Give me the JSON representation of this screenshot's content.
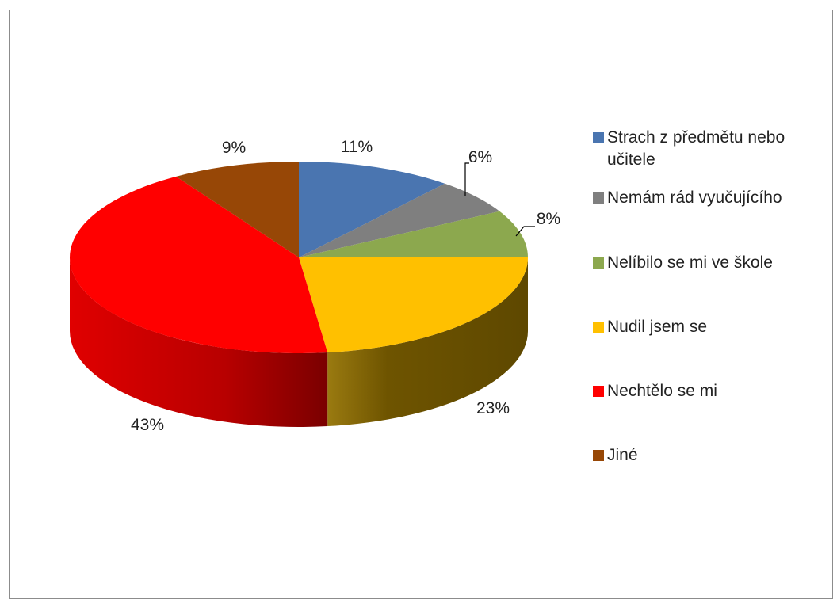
{
  "chart_data": {
    "type": "pie",
    "style": "3d",
    "slices": [
      {
        "label": "Strach z předmětu nebo učitele",
        "value": 11,
        "display": "11%",
        "color": "#4A75B0",
        "side": "#2F4F7F"
      },
      {
        "label": "Nemám rád vyučujícího",
        "value": 6,
        "display": "6%",
        "color": "#7F7F7F",
        "side": "#4D4D4D"
      },
      {
        "label": "Nelíbilo se mi ve škole",
        "value": 8,
        "display": "8%",
        "color": "#8CA84E",
        "side": "#5B7031"
      },
      {
        "label": "Nudil jsem se",
        "value": 23,
        "display": "23%",
        "color": "#FFC000",
        "side": "#6B5400"
      },
      {
        "label": "Nechtělo se mi",
        "value": 43,
        "display": "43%",
        "color": "#FF0000",
        "side": "#B00000"
      },
      {
        "label": "Jiné",
        "value": 9,
        "display": "9%",
        "color": "#974706",
        "side": "#5E2C04"
      }
    ],
    "legend_position": "right",
    "start_angle": "top, clockwise"
  }
}
